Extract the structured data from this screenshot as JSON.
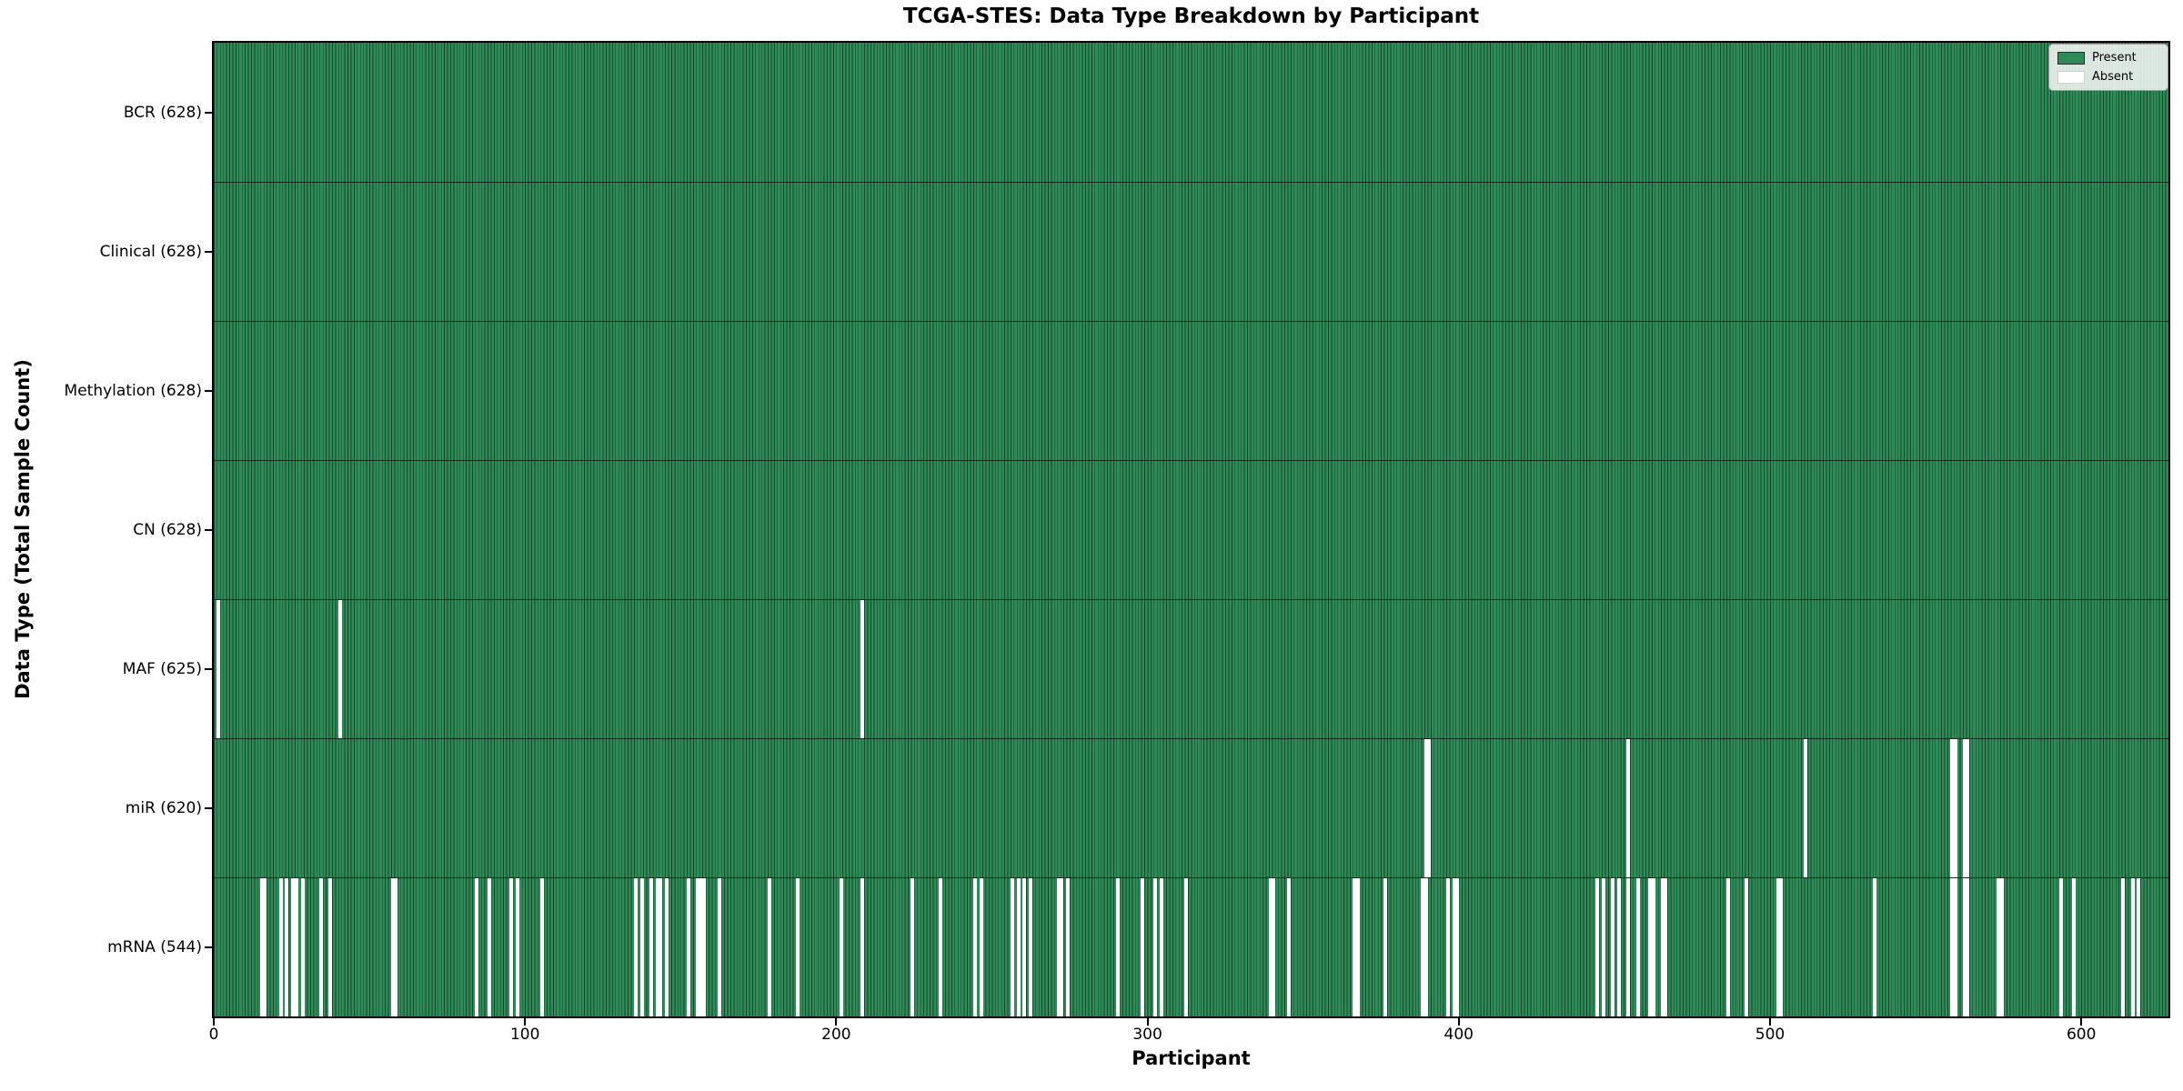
{
  "chart_data": {
    "type": "heatmap",
    "title": "TCGA-STES: Data Type Breakdown by Participant",
    "xlabel": "Participant",
    "ylabel": "Data Type (Total Sample Count)",
    "x_ticks": [
      0,
      100,
      200,
      300,
      400,
      500,
      600
    ],
    "xlim": [
      0,
      628
    ],
    "n_participants": 628,
    "grid": false,
    "legend_position": "upper right",
    "legend": [
      {
        "label": "Present",
        "color": "#2e8b57"
      },
      {
        "label": "Absent",
        "color": "#ffffff"
      }
    ],
    "colors": {
      "present_fill": "#2e8b57",
      "bar_edge": "#17452b",
      "absent_fill": "#ffffff",
      "row_divider": "#1a1a1a",
      "spine": "#000000"
    },
    "rows": [
      {
        "label": "BCR (628)",
        "name": "BCR",
        "present_count": 628,
        "absent_participants": []
      },
      {
        "label": "Clinical (628)",
        "name": "Clinical",
        "present_count": 628,
        "absent_participants": []
      },
      {
        "label": "Methylation (628)",
        "name": "Methylation",
        "present_count": 628,
        "absent_participants": []
      },
      {
        "label": "CN (628)",
        "name": "CN",
        "present_count": 628,
        "absent_participants": []
      },
      {
        "label": "MAF (625)",
        "name": "MAF",
        "present_count": 625,
        "absent_participants": [
          1,
          40,
          208
        ]
      },
      {
        "label": "miR (620)",
        "name": "miR",
        "present_count": 620,
        "absent_participants": [
          389,
          390,
          454,
          511,
          558,
          559,
          562,
          563
        ]
      },
      {
        "label": "mRNA (544)",
        "name": "mRNA",
        "present_count": 544,
        "absent_participants": [
          15,
          16,
          21,
          23,
          25,
          26,
          28,
          34,
          37,
          57,
          58,
          84,
          88,
          95,
          97,
          105,
          135,
          137,
          140,
          142,
          143,
          145,
          152,
          155,
          156,
          157,
          162,
          178,
          187,
          201,
          208,
          224,
          233,
          244,
          246,
          256,
          258,
          260,
          262,
          271,
          272,
          274,
          290,
          298,
          302,
          304,
          312,
          339,
          340,
          345,
          366,
          367,
          376,
          388,
          389,
          396,
          398,
          399,
          444,
          446,
          449,
          451,
          454,
          457,
          461,
          462,
          465,
          466,
          486,
          492,
          502,
          503,
          533,
          558,
          559,
          562,
          563,
          573,
          574,
          593,
          597,
          613,
          616,
          618
        ]
      }
    ]
  }
}
